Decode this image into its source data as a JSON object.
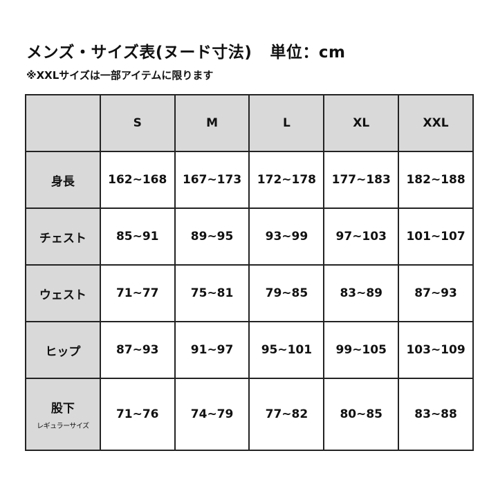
{
  "title": "メンズ・サイズ表(ヌード寸法)",
  "unit": "単位：cm",
  "note": "※XXLサイズは一部アイテムに限ります",
  "table": {
    "header": [
      "",
      "S",
      "M",
      "L",
      "XL",
      "XXL"
    ],
    "rows": [
      {
        "label": "身長",
        "sub": "",
        "values": [
          "162~168",
          "167~173",
          "172~178",
          "177~183",
          "182~188"
        ]
      },
      {
        "label": "チェスト",
        "sub": "",
        "values": [
          "85~91",
          "89~95",
          "93~99",
          "97~103",
          "101~107"
        ]
      },
      {
        "label": "ウェスト",
        "sub": "",
        "values": [
          "71~77",
          "75~81",
          "79~85",
          "83~89",
          "87~93"
        ]
      },
      {
        "label": "ヒップ",
        "sub": "",
        "values": [
          "87~93",
          "91~97",
          "95~101",
          "99~105",
          "103~109"
        ]
      },
      {
        "label": "股下",
        "sub": "レギュラーサイズ",
        "values": [
          "71~76",
          "74~79",
          "77~82",
          "80~85",
          "83~88"
        ]
      }
    ]
  },
  "colors": {
    "header_bg": "#d9d9d9",
    "border": "#222222"
  }
}
